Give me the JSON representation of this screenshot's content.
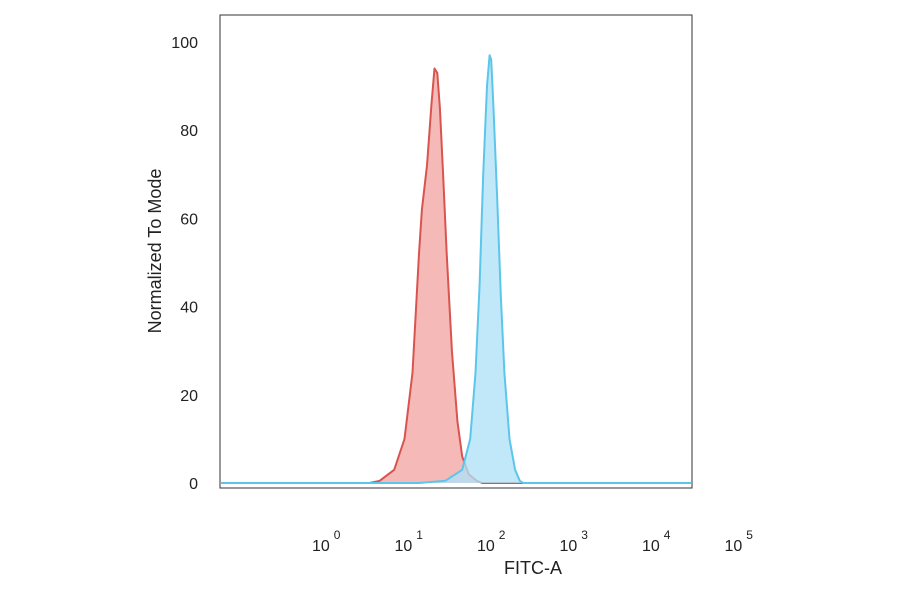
{
  "chart_data": {
    "type": "area",
    "title": "",
    "xlabel": "FITC-A",
    "ylabel": "Normalized To Mode",
    "x_scale": "log",
    "x_tick_base": "10",
    "x_ticks": [
      "0",
      "1",
      "2",
      "3",
      "4",
      "5"
    ],
    "y_ticks": [
      "0",
      "20",
      "40",
      "60",
      "80",
      "100"
    ],
    "ylim": [
      0,
      104
    ],
    "grid": false,
    "legend": "none",
    "series": [
      {
        "color": "#d9544f",
        "fill": "#f2a7a3",
        "points": [
          [
            3.0,
            0
          ],
          [
            4.0,
            0.5
          ],
          [
            6.0,
            3
          ],
          [
            8.0,
            10
          ],
          [
            10.0,
            25
          ],
          [
            12.0,
            52
          ],
          [
            13.0,
            62
          ],
          [
            15.0,
            72
          ],
          [
            17.0,
            86
          ],
          [
            18.5,
            94
          ],
          [
            20.0,
            93
          ],
          [
            21.5,
            85
          ],
          [
            23.5,
            70
          ],
          [
            26.0,
            52
          ],
          [
            30.0,
            30
          ],
          [
            35.0,
            14
          ],
          [
            40.0,
            6
          ],
          [
            48.0,
            2
          ],
          [
            60.0,
            0.5
          ],
          [
            70.0,
            0
          ]
        ]
      },
      {
        "color": "#5cc6ea",
        "fill": "#aee1f7",
        "points": [
          [
            12.0,
            0
          ],
          [
            25.0,
            0.5
          ],
          [
            40.0,
            3
          ],
          [
            50.0,
            10
          ],
          [
            58.0,
            25
          ],
          [
            65.0,
            45
          ],
          [
            72.0,
            70
          ],
          [
            80.0,
            90
          ],
          [
            86.0,
            97
          ],
          [
            90.0,
            96
          ],
          [
            96.0,
            85
          ],
          [
            106.0,
            65
          ],
          [
            118.0,
            42
          ],
          [
            130.0,
            25
          ],
          [
            150.0,
            10
          ],
          [
            175.0,
            3
          ],
          [
            200.0,
            0.5
          ],
          [
            220.0,
            0
          ]
        ]
      }
    ]
  }
}
